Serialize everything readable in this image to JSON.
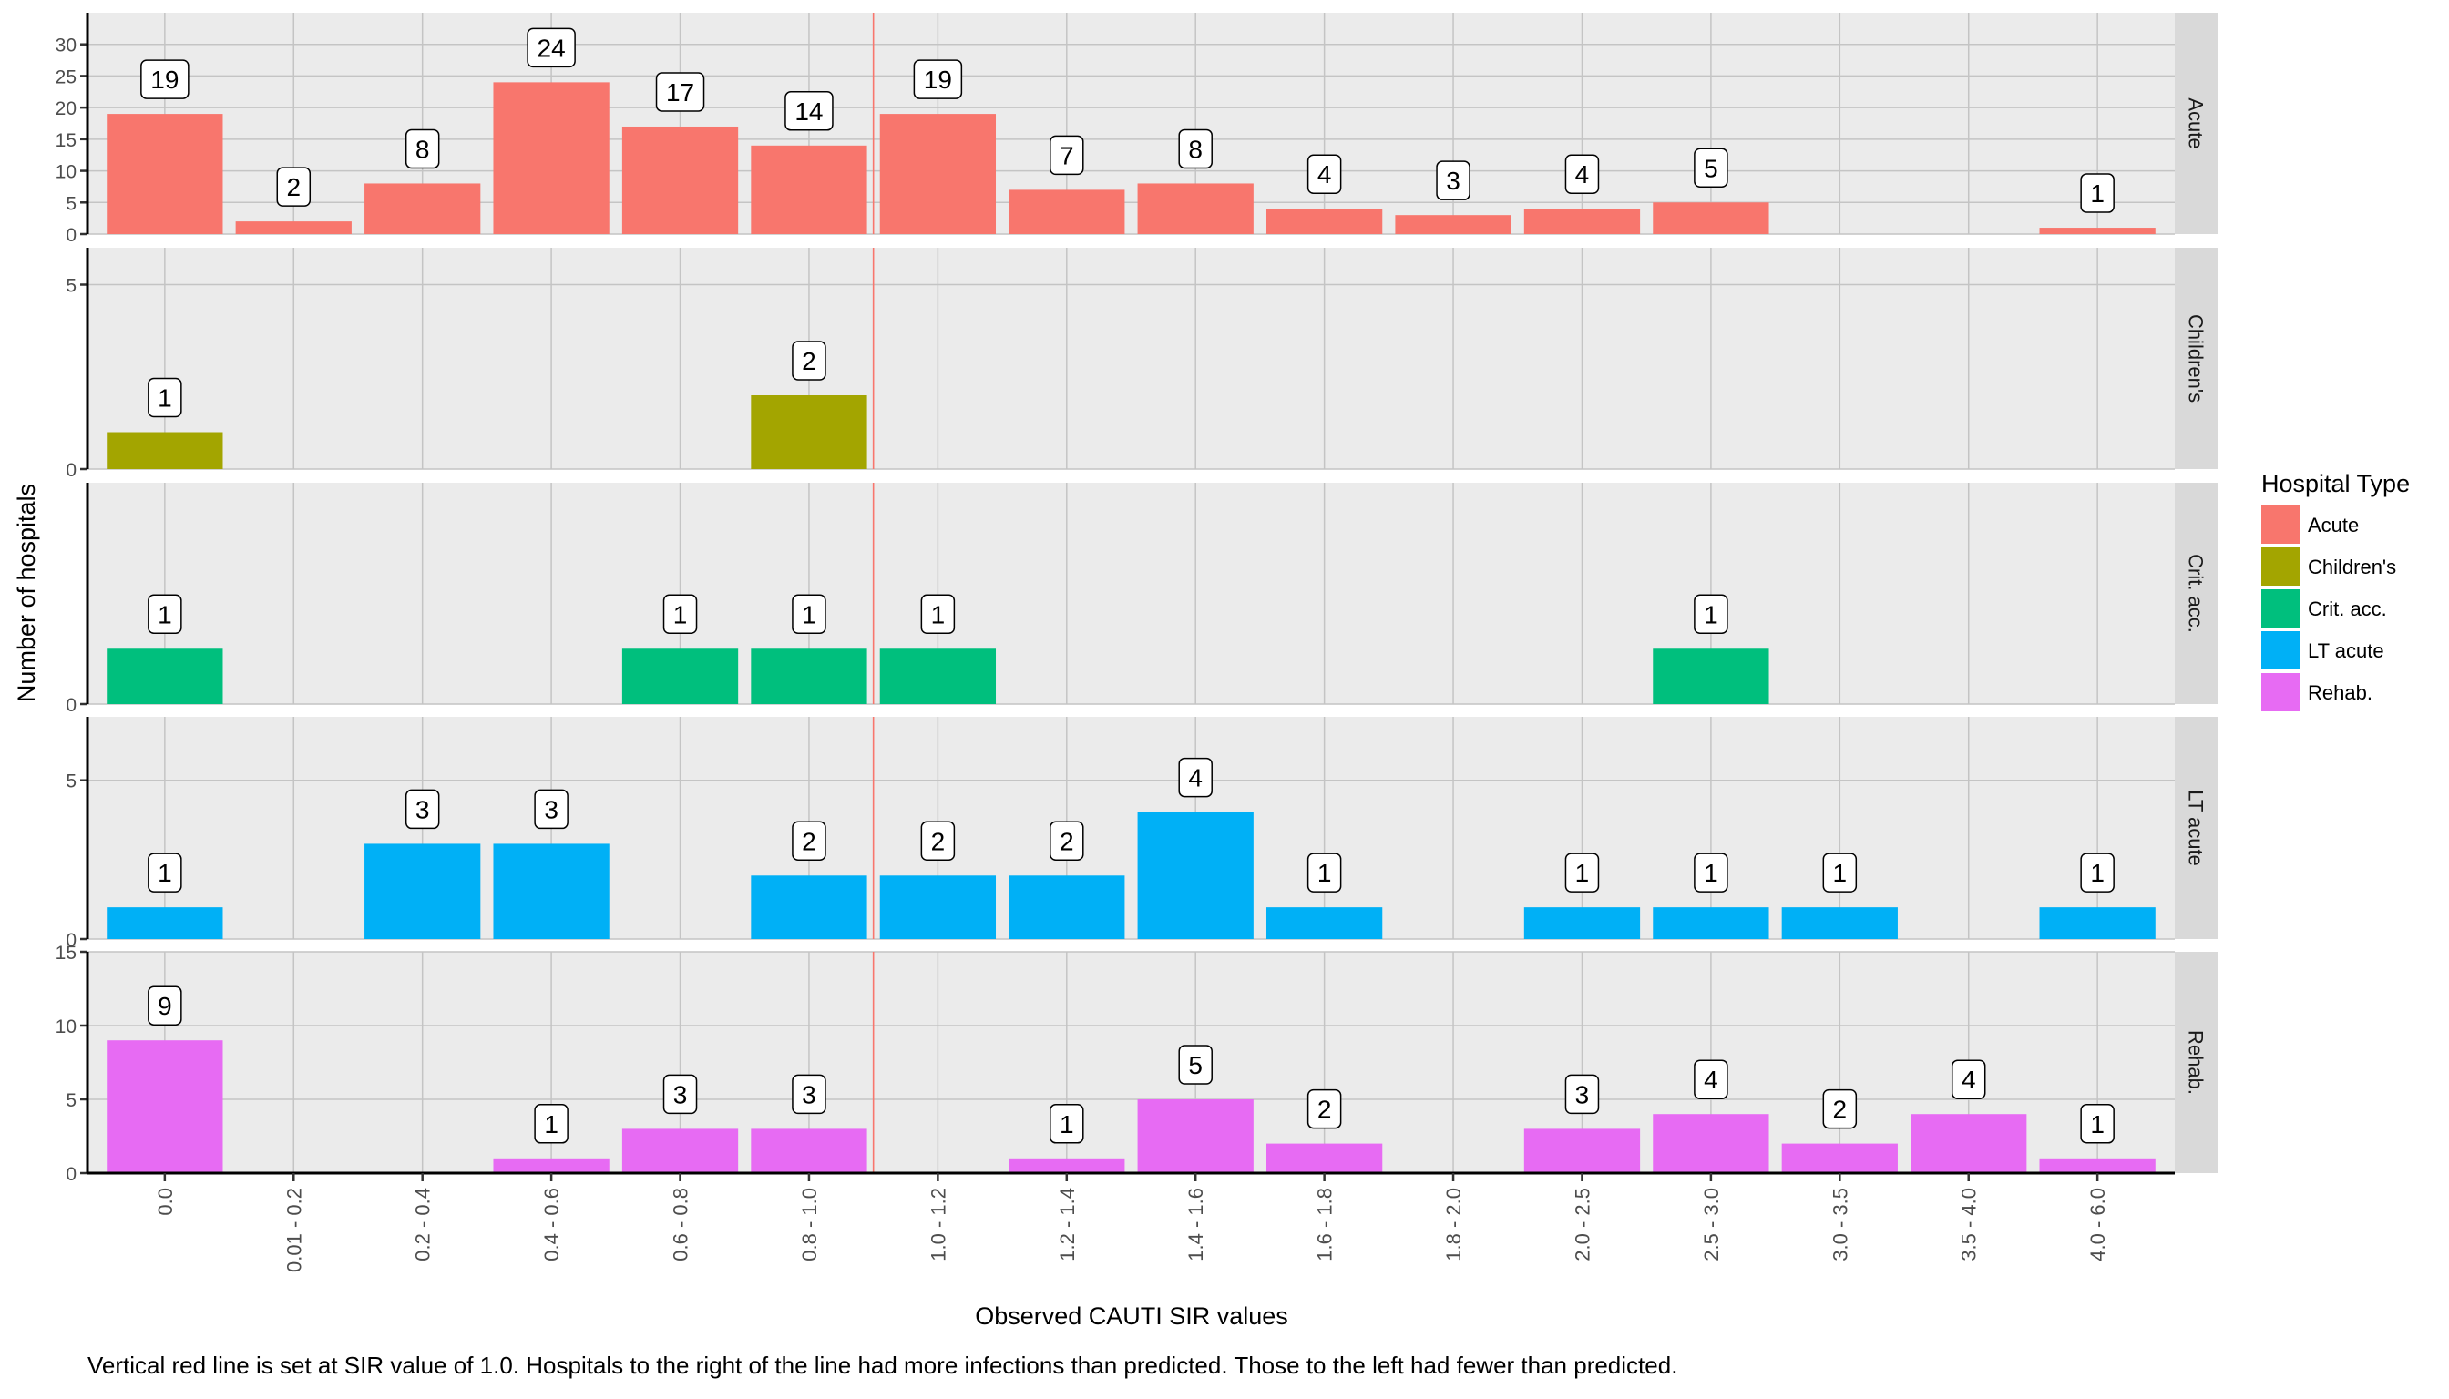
{
  "chart_data": {
    "type": "bar",
    "facet": "rows",
    "xlabel": "Observed CAUTI SIR values",
    "ylabel": "Number of hospitals",
    "caption": "Vertical red line is set at SIR value of 1.0.  Hospitals to the right of the line had more infections than predicted.  Those to the left had fewer than predicted.",
    "categories": [
      "0.0",
      "0.01 - 0.2",
      "0.2 - 0.4",
      "0.4 - 0.6",
      "0.6 - 0.8",
      "0.8 - 1.0",
      "1.0 - 1.2",
      "1.2 - 1.4",
      "1.4 - 1.6",
      "1.6 - 1.8",
      "1.8 - 2.0",
      "2.0 - 2.5",
      "2.5 - 3.0",
      "3.0 - 3.5",
      "3.5 - 4.0",
      "4.0 - 6.0"
    ],
    "reference_line": {
      "between_categories": [
        "0.8 - 1.0",
        "1.0 - 1.2"
      ],
      "sir_value": 1.0,
      "color": "#F8766D"
    },
    "grid": true,
    "legend": {
      "title": "Hospital Type",
      "position": "right",
      "entries": [
        "Acute",
        "Children's",
        "Crit. acc.",
        "LT acute",
        "Rehab."
      ]
    },
    "series": [
      {
        "name": "Acute",
        "color": "#F8766D",
        "ylim": [
          0,
          35
        ],
        "yticks": [
          0,
          5,
          10,
          15,
          20,
          25,
          30
        ],
        "values": [
          19,
          2,
          8,
          24,
          17,
          14,
          19,
          7,
          8,
          4,
          3,
          4,
          5,
          0,
          0,
          1
        ]
      },
      {
        "name": "Children's",
        "color": "#A3A500",
        "ylim": [
          0,
          6
        ],
        "yticks": [
          0,
          5
        ],
        "values": [
          1,
          0,
          0,
          0,
          0,
          2,
          0,
          0,
          0,
          0,
          0,
          0,
          0,
          0,
          0,
          0
        ]
      },
      {
        "name": "Crit. acc.",
        "color": "#00BF7D",
        "ylim": [
          0,
          4
        ],
        "yticks": [
          0
        ],
        "values": [
          1,
          0,
          0,
          0,
          1,
          1,
          1,
          0,
          0,
          0,
          0,
          0,
          1,
          0,
          0,
          0
        ]
      },
      {
        "name": "LT acute",
        "color": "#00B0F6",
        "ylim": [
          0,
          7
        ],
        "yticks": [
          0,
          5
        ],
        "values": [
          1,
          0,
          3,
          3,
          0,
          2,
          2,
          2,
          4,
          1,
          0,
          1,
          1,
          1,
          0,
          1
        ]
      },
      {
        "name": "Rehab.",
        "color": "#E76BF3",
        "ylim": [
          0,
          15
        ],
        "yticks": [
          0,
          5,
          10,
          15
        ],
        "values": [
          9,
          0,
          0,
          1,
          3,
          3,
          0,
          1,
          5,
          2,
          0,
          3,
          4,
          2,
          4,
          1
        ]
      }
    ]
  }
}
